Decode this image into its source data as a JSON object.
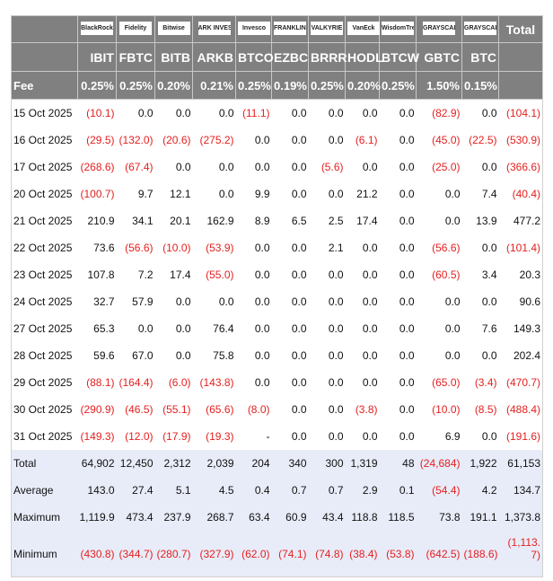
{
  "header": {
    "logos": [
      "BlackRock",
      "Fidelity",
      "Bitwise",
      "ARK INVEST",
      "Invesco",
      "FRANKLIN TEMPLETON",
      "VALKYRIE",
      "VanEck",
      "WisdomTree",
      "GRAYSCALE",
      "GRAYSCALE"
    ],
    "total_label": "Total",
    "tickers": [
      "IBIT",
      "FBTC",
      "BITB",
      "ARKB",
      "BTCO",
      "EZBC",
      "BRRR",
      "HODL",
      "BTCW",
      "GBTC",
      "BTC"
    ],
    "fee_label": "Fee",
    "fees": [
      "0.25%",
      "0.25%",
      "0.20%",
      "0.21%",
      "0.25%",
      "0.19%",
      "0.25%",
      "0.20%",
      "0.25%",
      "1.50%",
      "0.15%"
    ]
  },
  "rows": [
    [
      "15 Oct 2025",
      "(10.1)",
      "0.0",
      "0.0",
      "0.0",
      "(11.1)",
      "0.0",
      "0.0",
      "0.0",
      "0.0",
      "(82.9)",
      "0.0",
      "(104.1)"
    ],
    [
      "16 Oct 2025",
      "(29.5)",
      "(132.0)",
      "(20.6)",
      "(275.2)",
      "0.0",
      "0.0",
      "0.0",
      "(6.1)",
      "0.0",
      "(45.0)",
      "(22.5)",
      "(530.9)"
    ],
    [
      "17 Oct 2025",
      "(268.6)",
      "(67.4)",
      "0.0",
      "0.0",
      "0.0",
      "0.0",
      "(5.6)",
      "0.0",
      "0.0",
      "(25.0)",
      "0.0",
      "(366.6)"
    ],
    [
      "20 Oct 2025",
      "(100.7)",
      "9.7",
      "12.1",
      "0.0",
      "9.9",
      "0.0",
      "0.0",
      "21.2",
      "0.0",
      "0.0",
      "7.4",
      "(40.4)"
    ],
    [
      "21 Oct 2025",
      "210.9",
      "34.1",
      "20.1",
      "162.9",
      "8.9",
      "6.5",
      "2.5",
      "17.4",
      "0.0",
      "0.0",
      "13.9",
      "477.2"
    ],
    [
      "22 Oct 2025",
      "73.6",
      "(56.6)",
      "(10.0)",
      "(53.9)",
      "0.0",
      "0.0",
      "2.1",
      "0.0",
      "0.0",
      "(56.6)",
      "0.0",
      "(101.4)"
    ],
    [
      "23 Oct 2025",
      "107.8",
      "7.2",
      "17.4",
      "(55.0)",
      "0.0",
      "0.0",
      "0.0",
      "0.0",
      "0.0",
      "(60.5)",
      "3.4",
      "20.3"
    ],
    [
      "24 Oct 2025",
      "32.7",
      "57.9",
      "0.0",
      "0.0",
      "0.0",
      "0.0",
      "0.0",
      "0.0",
      "0.0",
      "0.0",
      "0.0",
      "90.6"
    ],
    [
      "27 Oct 2025",
      "65.3",
      "0.0",
      "0.0",
      "76.4",
      "0.0",
      "0.0",
      "0.0",
      "0.0",
      "0.0",
      "0.0",
      "7.6",
      "149.3"
    ],
    [
      "28 Oct 2025",
      "59.6",
      "67.0",
      "0.0",
      "75.8",
      "0.0",
      "0.0",
      "0.0",
      "0.0",
      "0.0",
      "0.0",
      "0.0",
      "202.4"
    ],
    [
      "29 Oct 2025",
      "(88.1)",
      "(164.4)",
      "(6.0)",
      "(143.8)",
      "0.0",
      "0.0",
      "0.0",
      "0.0",
      "0.0",
      "(65.0)",
      "(3.4)",
      "(470.7)"
    ],
    [
      "30 Oct 2025",
      "(290.9)",
      "(46.5)",
      "(55.1)",
      "(65.6)",
      "(8.0)",
      "0.0",
      "0.0",
      "(3.8)",
      "0.0",
      "(10.0)",
      "(8.5)",
      "(488.4)"
    ],
    [
      "31 Oct 2025",
      "(149.3)",
      "(12.0)",
      "(17.9)",
      "(19.3)",
      "-",
      "0.0",
      "0.0",
      "0.0",
      "0.0",
      "6.9",
      "0.0",
      "(191.6)"
    ]
  ],
  "summary": [
    [
      "Total",
      "64,902",
      "12,450",
      "2,312",
      "2,039",
      "204",
      "340",
      "300",
      "1,319",
      "48",
      "(24,684)",
      "1,922",
      "61,153"
    ],
    [
      "Average",
      "143.0",
      "27.4",
      "5.1",
      "4.5",
      "0.4",
      "0.7",
      "0.7",
      "2.9",
      "0.1",
      "(54.4)",
      "4.2",
      "134.7"
    ],
    [
      "Maximum",
      "1,119.9",
      "473.4",
      "237.9",
      "268.7",
      "63.4",
      "60.9",
      "43.4",
      "118.8",
      "118.5",
      "73.8",
      "191.1",
      "1,373.8"
    ],
    [
      "Minimum",
      "(430.8)",
      "(344.7)",
      "(280.7)",
      "(327.9)",
      "(62.0)",
      "(74.1)",
      "(74.8)",
      "(38.4)",
      "(53.8)",
      "(642.5)",
      "(188.6)",
      "(1,113.7)"
    ]
  ],
  "colors": {
    "header_bg": "#808080",
    "summary_bg": "#e8ecf8",
    "negative": "#e52020"
  }
}
